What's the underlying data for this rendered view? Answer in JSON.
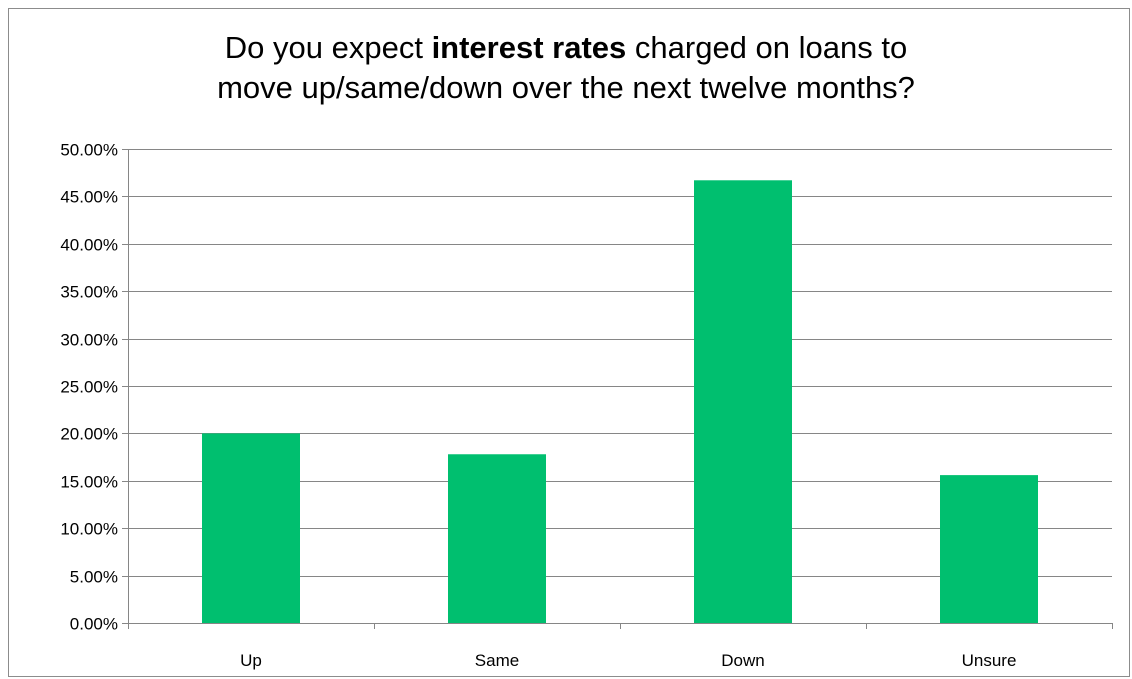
{
  "chart_data": {
    "type": "bar",
    "title": {
      "line1_pre": "Do you expect ",
      "line1_bold": "interest rates",
      "line1_post": " charged on loans to",
      "line2": "move up/same/down over the next twelve months?"
    },
    "categories": [
      "Up",
      "Same",
      "Down",
      "Unsure"
    ],
    "values": [
      20.0,
      17.8,
      46.7,
      15.6
    ],
    "value_format": "percent",
    "ylim": [
      0,
      50
    ],
    "yticks": [
      0,
      5,
      10,
      15,
      20,
      25,
      30,
      35,
      40,
      45,
      50
    ],
    "ytick_labels": [
      "0.00%",
      "5.00%",
      "10.00%",
      "15.00%",
      "20.00%",
      "25.00%",
      "30.00%",
      "35.00%",
      "40.00%",
      "45.00%",
      "50.00%"
    ],
    "xlabel": "",
    "ylabel": "",
    "grid": true,
    "legend": false,
    "bar_color": "#00bf6f",
    "gridline_color": "#868686"
  }
}
